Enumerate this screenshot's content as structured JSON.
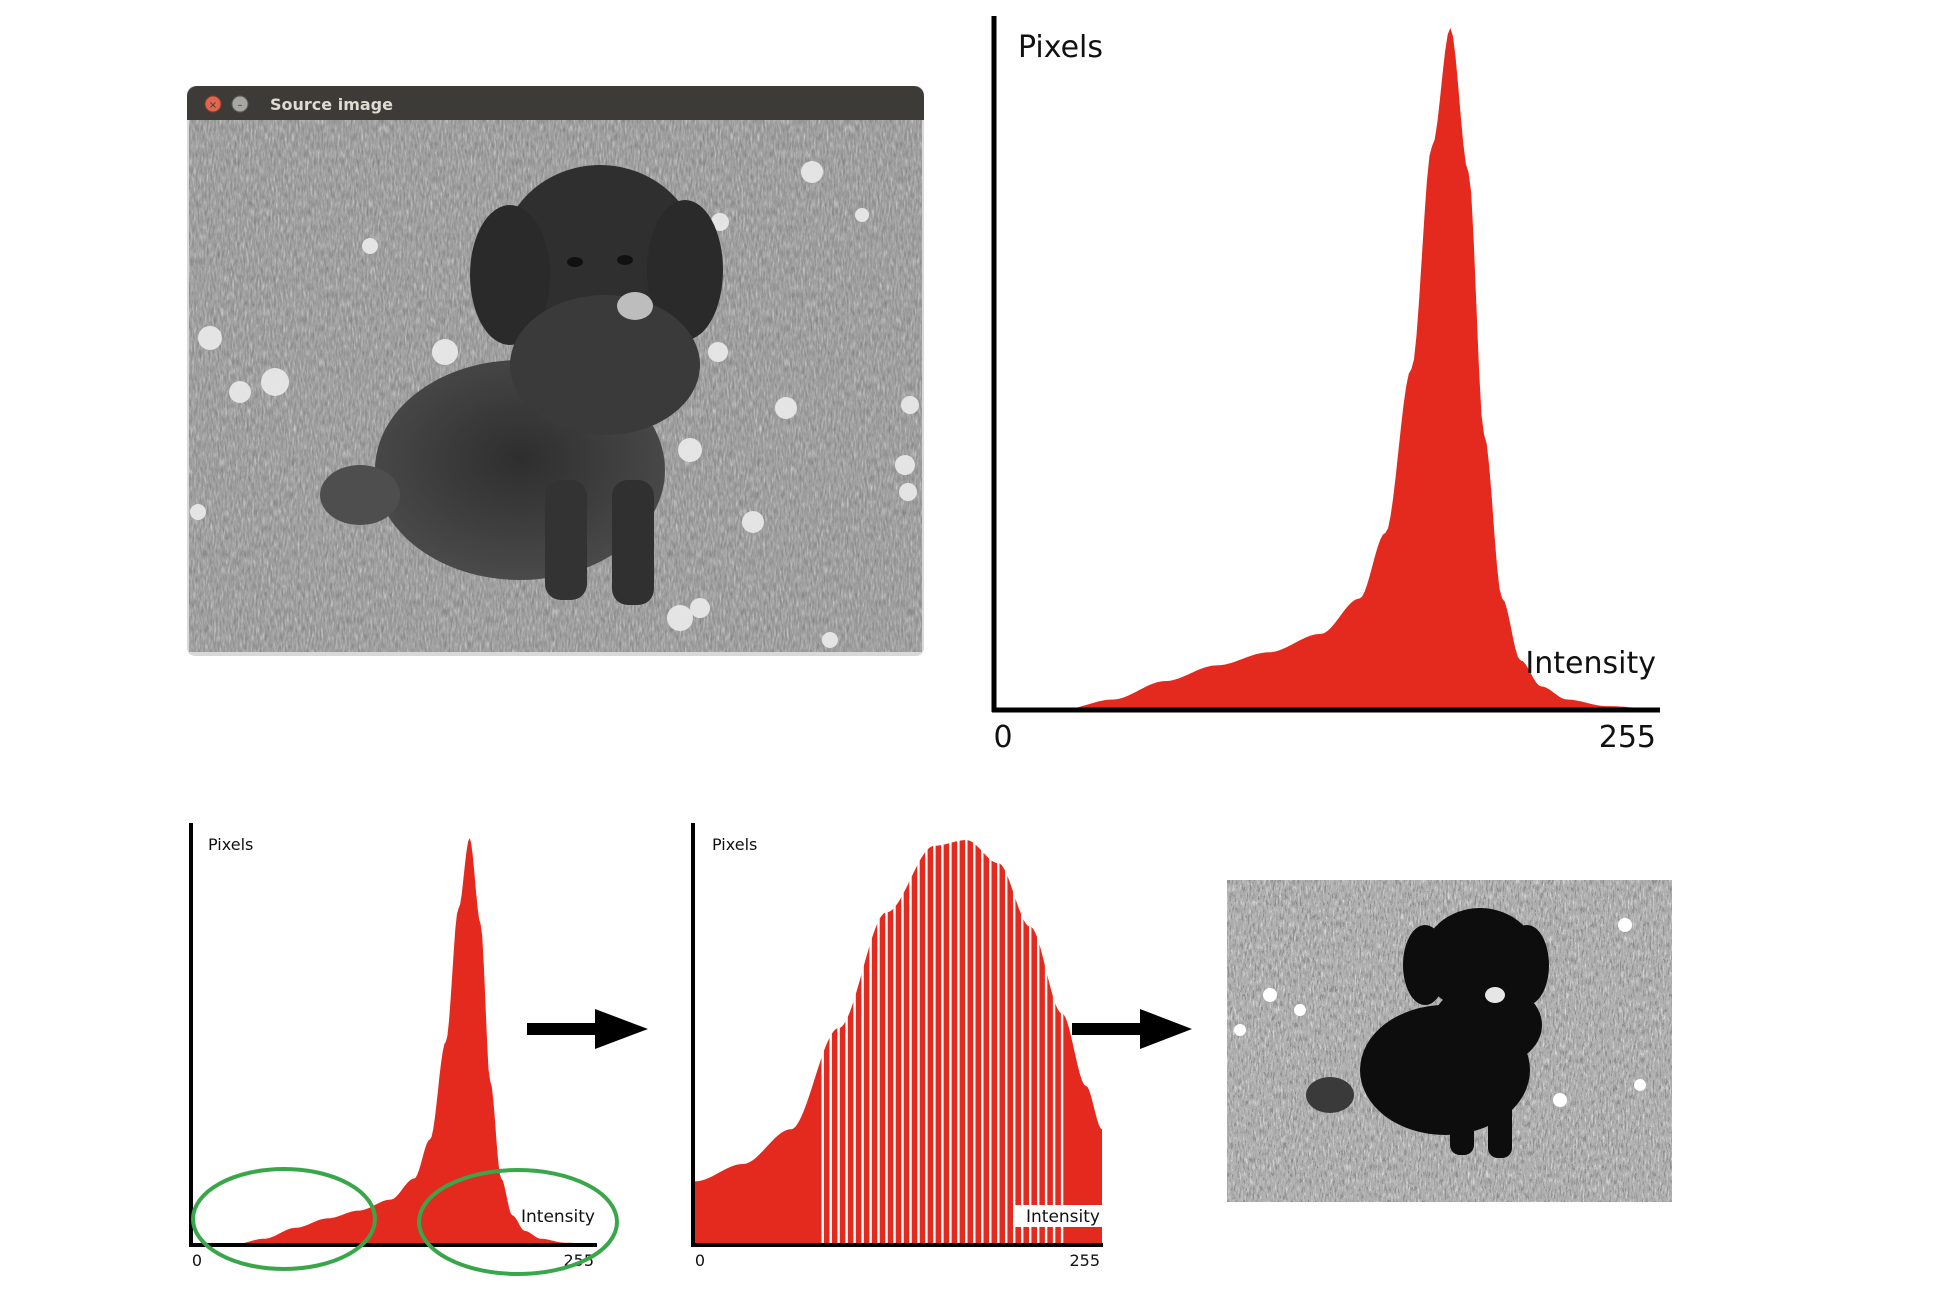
{
  "window": {
    "title": "Source image",
    "titlebar_color": "#3c3b37",
    "close_color": "#e0664f",
    "minimize_color": "#a9a7a1"
  },
  "colors": {
    "histogram_fill": "#e42a1e",
    "axis": "#000000",
    "highlight_ellipse": "#3aa64a",
    "arrow": "#000000"
  },
  "main_histogram": {
    "y_label": "Pixels",
    "x_label": "Intensity",
    "x_min_label": "0",
    "x_max_label": "255"
  },
  "before_histogram": {
    "y_label": "Pixels",
    "x_label": "Intensity",
    "x_min_label": "0",
    "x_max_label": "255",
    "highlights": [
      "low-intensity tail",
      "high-intensity tail"
    ]
  },
  "after_histogram": {
    "y_label": "Pixels",
    "x_label": "Intensity",
    "x_min_label": "0",
    "x_max_label": "255"
  },
  "chart_data": [
    {
      "type": "area",
      "xlabel": "Intensity",
      "ylabel": "Pixels",
      "xlim": [
        0,
        255
      ],
      "x": [
        0,
        25,
        45,
        65,
        85,
        105,
        125,
        140,
        150,
        160,
        168,
        175,
        182,
        188,
        195,
        202,
        210,
        220,
        235,
        255
      ],
      "y": [
        0,
        0,
        8,
        22,
        34,
        44,
        58,
        85,
        135,
        260,
        430,
        520,
        410,
        210,
        85,
        38,
        18,
        8,
        3,
        1
      ]
    },
    {
      "type": "area",
      "xlabel": "Intensity",
      "ylabel": "Pixels",
      "xlim": [
        0,
        255
      ],
      "x": [
        0,
        25,
        45,
        65,
        85,
        105,
        125,
        140,
        150,
        160,
        168,
        175,
        182,
        188,
        195,
        202,
        210,
        220,
        235,
        255
      ],
      "y": [
        0,
        0,
        8,
        22,
        34,
        44,
        58,
        85,
        135,
        260,
        430,
        520,
        410,
        210,
        85,
        38,
        18,
        8,
        3,
        1
      ]
    },
    {
      "type": "bar",
      "xlabel": "Intensity",
      "ylabel": "Pixels",
      "xlim": [
        0,
        255
      ],
      "x": [
        0,
        30,
        60,
        90,
        120,
        150,
        170,
        190,
        210,
        230,
        245,
        255
      ],
      "y": [
        22,
        28,
        40,
        75,
        115,
        138,
        140,
        132,
        110,
        80,
        55,
        40
      ]
    }
  ]
}
